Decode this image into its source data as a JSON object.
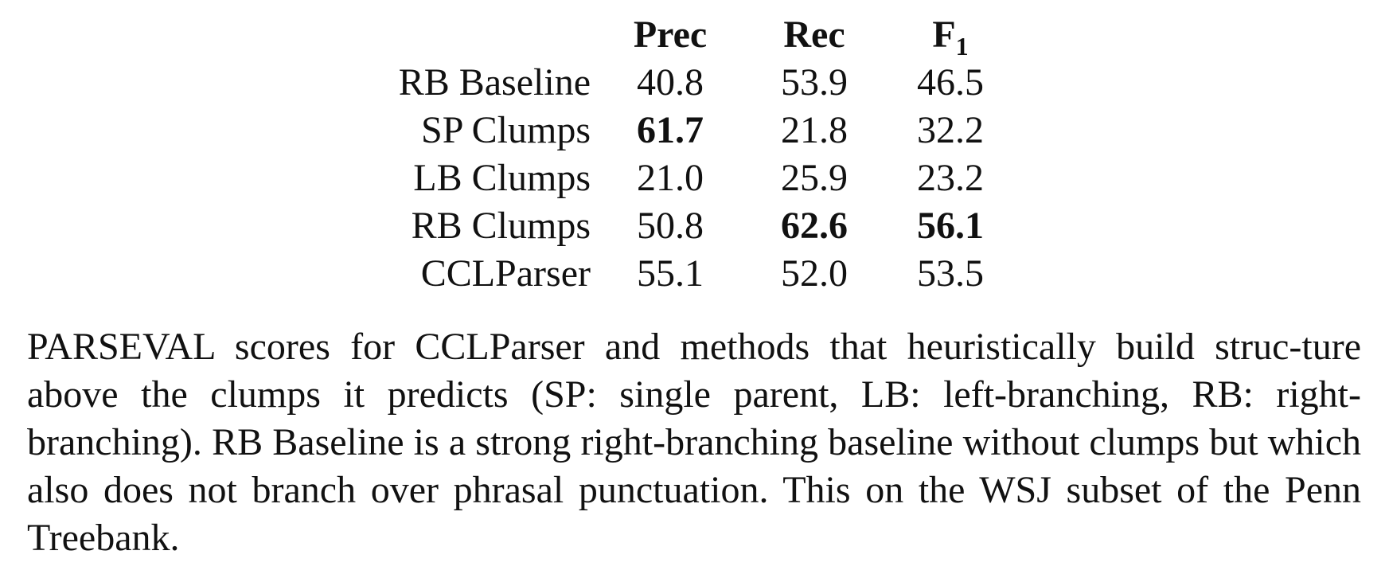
{
  "table": {
    "headers": {
      "method": "",
      "prec": "Prec",
      "rec": "Rec",
      "f1_main": "F",
      "f1_sub": "1"
    },
    "rows": [
      {
        "method": "RB Baseline",
        "prec": "40.8",
        "rec": "53.9",
        "f1": "46.5",
        "bold": []
      },
      {
        "method": "SP Clumps",
        "prec": "61.7",
        "rec": "21.8",
        "f1": "32.2",
        "bold": [
          "prec"
        ]
      },
      {
        "method": "LB Clumps",
        "prec": "21.0",
        "rec": "25.9",
        "f1": "23.2",
        "bold": []
      },
      {
        "method": "RB Clumps",
        "prec": "50.8",
        "rec": "62.6",
        "f1": "56.1",
        "bold": [
          "rec",
          "f1"
        ]
      },
      {
        "method": "CCLParser",
        "prec": "55.1",
        "rec": "52.0",
        "f1": "53.5",
        "bold": []
      }
    ]
  },
  "caption": "PARSEVAL scores for CCLParser and methods that heuristically build struc-ture above the clumps it predicts (SP: single parent, LB: left-branching, RB: right-branching). RB Baseline is a strong right-branching baseline without clumps but which also does not branch over phrasal punctuation. This on the WSJ subset of the Penn Treebank."
}
